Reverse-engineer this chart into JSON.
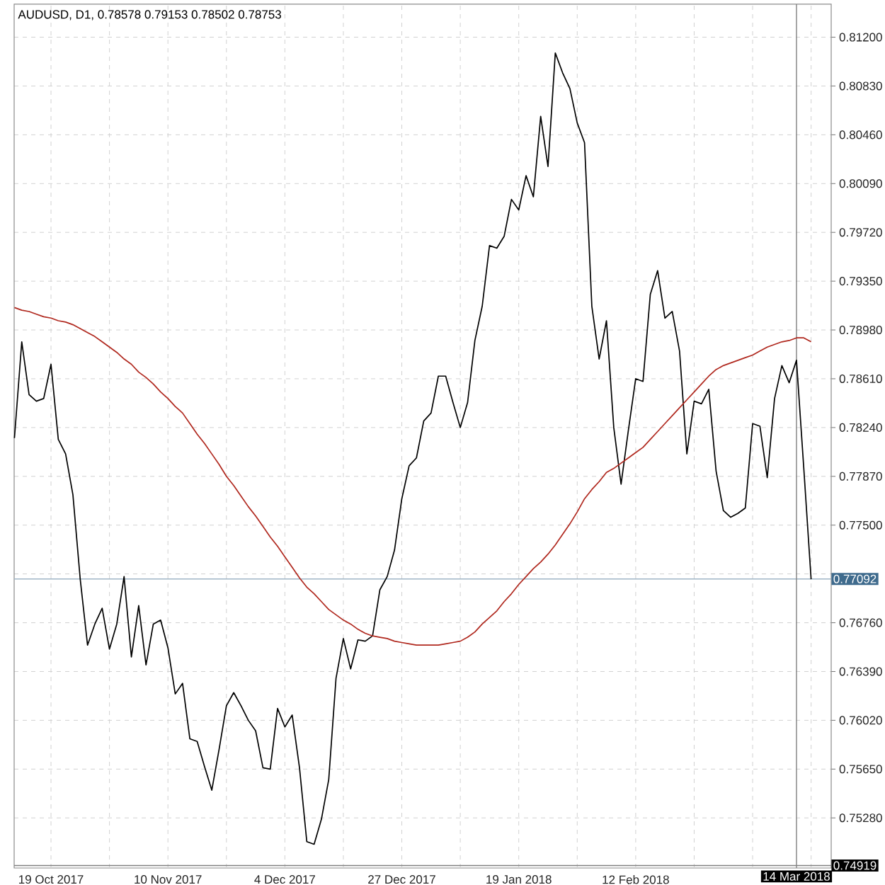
{
  "chart_data": {
    "type": "line",
    "title": "AUDUSD, D1, 0.78578 0.79153 0.78502 0.78753",
    "categories": [
      null,
      null,
      null,
      null,
      null,
      "19 Oct 2017",
      null,
      null,
      null,
      null,
      null,
      null,
      null,
      null,
      null,
      null,
      null,
      null,
      null,
      null,
      null,
      "10 Nov 2017",
      null,
      null,
      null,
      null,
      null,
      null,
      null,
      null,
      null,
      null,
      null,
      null,
      null,
      null,
      null,
      "4 Dec 2017",
      null,
      null,
      null,
      null,
      null,
      null,
      null,
      null,
      null,
      null,
      null,
      null,
      null,
      null,
      null,
      "27 Dec 2017",
      null,
      null,
      null,
      null,
      null,
      null,
      null,
      null,
      null,
      null,
      null,
      null,
      null,
      null,
      null,
      "19 Jan 2018",
      null,
      null,
      null,
      null,
      null,
      null,
      null,
      null,
      null,
      null,
      null,
      null,
      null,
      null,
      null,
      "12 Feb 2018",
      null,
      null,
      null,
      null,
      null,
      null,
      null,
      null,
      null,
      null,
      null,
      null,
      null,
      null,
      null,
      null,
      null,
      null,
      null,
      null,
      null,
      "14 Mar 2018",
      null,
      null
    ],
    "series": [
      {
        "color": "#000000",
        "values": [
          0.7816,
          0.7889,
          0.7849,
          0.7844,
          0.7846,
          0.7872,
          0.7815,
          0.7804,
          0.7773,
          0.7709,
          0.7659,
          0.7675,
          0.7687,
          0.7656,
          0.7675,
          0.7711,
          0.765,
          0.7689,
          0.7644,
          0.7675,
          0.7678,
          0.7657,
          0.7622,
          0.763,
          0.7588,
          0.7586,
          0.7567,
          0.7549,
          0.758,
          0.7613,
          0.7623,
          0.7613,
          0.7602,
          0.7594,
          0.7566,
          0.7565,
          0.7611,
          0.7597,
          0.7606,
          0.7566,
          0.751,
          0.7508,
          0.7527,
          0.7557,
          0.7634,
          0.7664,
          0.7641,
          0.7663,
          0.7662,
          0.7666,
          0.7701,
          0.7711,
          0.7731,
          0.777,
          0.7795,
          0.7801,
          0.7829,
          0.7835,
          0.7863,
          0.7863,
          0.7843,
          0.7824,
          0.7843,
          0.789,
          0.7916,
          0.7962,
          0.796,
          0.7969,
          0.7997,
          0.7989,
          0.8015,
          0.7999,
          0.806,
          0.8022,
          0.8108,
          0.8093,
          0.8081,
          0.8055,
          0.804,
          0.7916,
          0.7876,
          0.7905,
          0.7824,
          0.7781,
          0.7822,
          0.7861,
          0.7859,
          0.7925,
          0.7943,
          0.7907,
          0.7912,
          0.7882,
          0.7804,
          0.7844,
          0.7842,
          0.7853,
          0.7791,
          0.7761,
          0.7756,
          0.7759,
          0.7763,
          0.7827,
          0.7825,
          0.7786,
          0.7846,
          0.7871,
          0.7858,
          0.7875,
          0.7793,
          0.7709
        ]
      },
      {
        "color": "#b0281e",
        "values": [
          0.7915,
          0.7913,
          0.7912,
          0.791,
          0.7908,
          0.7907,
          0.7905,
          0.7904,
          0.7902,
          0.7899,
          0.7896,
          0.7893,
          0.7889,
          0.7885,
          0.7881,
          0.7876,
          0.7872,
          0.7866,
          0.7862,
          0.7857,
          0.7851,
          0.7846,
          0.784,
          0.7835,
          0.7827,
          0.7819,
          0.7812,
          0.7804,
          0.7796,
          0.7787,
          0.778,
          0.7772,
          0.7764,
          0.7757,
          0.7749,
          0.7741,
          0.7734,
          0.7726,
          0.7718,
          0.771,
          0.7703,
          0.7698,
          0.7692,
          0.7686,
          0.7682,
          0.7678,
          0.7675,
          0.7671,
          0.7668,
          0.7666,
          0.7665,
          0.7664,
          0.7662,
          0.7661,
          0.766,
          0.7659,
          0.7659,
          0.7659,
          0.7659,
          0.766,
          0.7661,
          0.7662,
          0.7665,
          0.7669,
          0.7675,
          0.768,
          0.7685,
          0.7692,
          0.7698,
          0.7705,
          0.7711,
          0.7717,
          0.7722,
          0.7728,
          0.7735,
          0.7743,
          0.7751,
          0.776,
          0.777,
          0.7777,
          0.7783,
          0.779,
          0.7793,
          0.7797,
          0.7801,
          0.7805,
          0.7809,
          0.7815,
          0.7821,
          0.7827,
          0.7833,
          0.7839,
          0.7845,
          0.7851,
          0.7857,
          0.7863,
          0.7868,
          0.7871,
          0.7873,
          0.7875,
          0.7877,
          0.7879,
          0.7882,
          0.7885,
          0.7887,
          0.7889,
          0.789,
          0.7892,
          0.7892,
          0.7889
        ]
      }
    ],
    "ylim": [
      0.749,
      0.8145
    ],
    "yticks": [
      {
        "value": 0.812,
        "label": "0.81200"
      },
      {
        "value": 0.8083,
        "label": "0.80830"
      },
      {
        "value": 0.8046,
        "label": "0.80460"
      },
      {
        "value": 0.8009,
        "label": "0.80090"
      },
      {
        "value": 0.7972,
        "label": "0.79720"
      },
      {
        "value": 0.7935,
        "label": "0.79350"
      },
      {
        "value": 0.7898,
        "label": "0.78980"
      },
      {
        "value": 0.7861,
        "label": "0.78610"
      },
      {
        "value": 0.7824,
        "label": "0.78240"
      },
      {
        "value": 0.7787,
        "label": "0.77870"
      },
      {
        "value": 0.775,
        "label": "0.77500"
      },
      {
        "value": 0.7713,
        "label": null
      },
      {
        "value": 0.7676,
        "label": "0.76760"
      },
      {
        "value": 0.7639,
        "label": "0.76390"
      },
      {
        "value": 0.7602,
        "label": "0.76020"
      },
      {
        "value": 0.7565,
        "label": "0.75650"
      },
      {
        "value": 0.7528,
        "label": "0.75280"
      }
    ],
    "grid": true,
    "ref_lines": [
      {
        "axis": "y",
        "value": 0.77092,
        "label": "0.77092",
        "color": "#9fb5c6"
      },
      {
        "axis": "x",
        "value": "14 Mar 2018",
        "color": "#808080"
      },
      {
        "axis": "y",
        "value": 0.74919,
        "label": "0.74919",
        "color": "#808080"
      }
    ]
  }
}
